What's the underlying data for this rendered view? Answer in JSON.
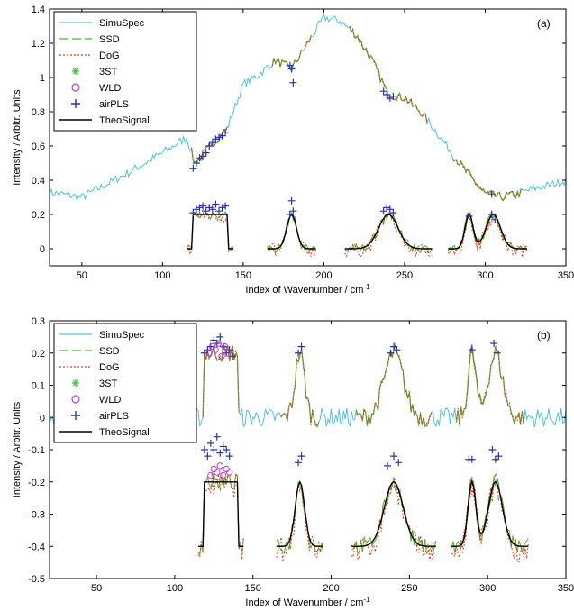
{
  "chart_data": [
    {
      "type": "line",
      "panel_label": "(a)",
      "xlabel": "Index of Wavenumber / cm",
      "xlabel_sup": "-1",
      "ylabel": "Intensity / Arbitr. Units",
      "xlim": [
        30,
        350
      ],
      "ylim": [
        -0.1,
        1.4
      ],
      "xticks": [
        50,
        100,
        150,
        200,
        250,
        300,
        350
      ],
      "yticks": [
        0,
        0.2,
        0.4,
        0.6,
        0.8,
        1,
        1.2,
        1.4
      ],
      "ytick_labels": [
        "0",
        "0.2",
        "0.4",
        "0.6",
        "0.8",
        "1",
        "1.2",
        "1.4"
      ],
      "legend_position": "top-left",
      "legend": [
        "SimuSpec",
        "SSD",
        "DoG",
        "3ST",
        "WLD",
        "airPLS",
        "TheoSignal"
      ],
      "colors": {
        "SimuSpec": "#4fc3d9",
        "SSD": "#55b030",
        "DoG": "#e0401e",
        "3ST": "#3cc23c",
        "WLD": "#c040c0",
        "airPLS": "#2a35a8",
        "TheoSignal": "#000000"
      },
      "series": [
        {
          "name": "SimuSpec",
          "x": [
            30,
            50,
            80,
            100,
            115,
            120,
            125,
            130,
            140,
            150,
            160,
            170,
            180,
            190,
            200,
            210,
            220,
            230,
            240,
            250,
            260,
            270,
            280,
            290,
            300,
            310,
            320,
            330,
            340,
            350
          ],
          "y": [
            0.33,
            0.3,
            0.45,
            0.56,
            0.65,
            0.5,
            0.55,
            0.6,
            0.7,
            0.96,
            1.02,
            1.1,
            1.05,
            1.2,
            1.35,
            1.33,
            1.25,
            1.1,
            0.9,
            0.88,
            0.8,
            0.68,
            0.55,
            0.43,
            0.32,
            0.3,
            0.32,
            0.35,
            0.37,
            0.4
          ]
        },
        {
          "name": "TheoSignal",
          "peaks": [
            {
              "type": "flat",
              "x0": 119,
              "x1": 140,
              "height": 0.2
            },
            {
              "type": "gauss",
              "center": 180,
              "height": 0.2,
              "sigma": 3
            },
            {
              "type": "gauss",
              "center": 240,
              "height": 0.2,
              "sigma": 6
            },
            {
              "type": "gauss",
              "center": 290,
              "height": 0.2,
              "sigma": 2.5
            },
            {
              "type": "gauss",
              "center": 305,
              "height": 0.2,
              "sigma": 4.5
            }
          ]
        },
        {
          "name": "airPLS",
          "x": [
            119,
            121,
            123,
            125,
            127,
            129,
            131,
            133,
            135,
            137,
            139,
            179,
            180,
            181,
            237,
            239,
            241,
            243,
            304,
            119,
            121,
            123,
            125,
            127,
            129,
            131,
            133,
            135,
            137,
            139,
            179,
            180,
            181,
            237,
            239,
            241,
            243,
            290,
            304,
            306
          ],
          "y": [
            0.47,
            0.5,
            0.53,
            0.54,
            0.56,
            0.6,
            0.62,
            0.64,
            0.65,
            0.66,
            0.68,
            1.07,
            1.05,
            0.97,
            0.92,
            0.9,
            0.88,
            0.89,
            0.32,
            0.21,
            0.23,
            0.24,
            0.25,
            0.22,
            0.24,
            0.23,
            0.26,
            0.22,
            0.24,
            0.25,
            0.2,
            0.28,
            0.22,
            0.22,
            0.24,
            0.23,
            0.21,
            0.19,
            0.2,
            0.17
          ]
        }
      ]
    },
    {
      "type": "line",
      "panel_label": "(b)",
      "xlabel": "Index of Wavenumber / cm",
      "xlabel_sup": "-1",
      "ylabel": "Intensity / Arbitr. Units",
      "xlim": [
        20,
        350
      ],
      "ylim": [
        -0.5,
        0.3
      ],
      "xticks": [
        50,
        100,
        150,
        200,
        250,
        300,
        350
      ],
      "yticks": [
        -0.5,
        -0.4,
        -0.3,
        -0.2,
        -0.1,
        0,
        0.1,
        0.2,
        0.3
      ],
      "ytick_labels": [
        "-0.5",
        "-0.4",
        "-0.3",
        "-0.2",
        "-0.1",
        "0",
        "0.1",
        "0.2",
        "0.3"
      ],
      "legend_position": "top-left",
      "legend": [
        "SimuSpec",
        "SSD",
        "DoG",
        "3ST",
        "WLD",
        "airPLS",
        "TheoSignal"
      ],
      "colors": {
        "SimuSpec": "#4fc3d9",
        "SSD": "#55b030",
        "DoG": "#e0401e",
        "3ST": "#3cc23c",
        "WLD": "#c040c0",
        "airPLS": "#2a35a8",
        "TheoSignal": "#000000"
      },
      "series": [
        {
          "name": "SimuSpec",
          "baseline": 0,
          "noise": 0.03,
          "peaks": [
            {
              "type": "flat",
              "x0": 119,
              "x1": 140,
              "height": 0.2
            },
            {
              "type": "gauss",
              "center": 180,
              "height": 0.2,
              "sigma": 3
            },
            {
              "type": "gauss",
              "center": 240,
              "height": 0.2,
              "sigma": 6
            },
            {
              "type": "gauss",
              "center": 290,
              "height": 0.2,
              "sigma": 2.5
            },
            {
              "type": "gauss",
              "center": 305,
              "height": 0.2,
              "sigma": 4.5
            }
          ]
        },
        {
          "name": "TheoSignal",
          "baseline": -0.4,
          "peaks": [
            {
              "type": "flat",
              "x0": 119,
              "x1": 140,
              "height": 0.2
            },
            {
              "type": "gauss",
              "center": 180,
              "height": 0.2,
              "sigma": 3
            },
            {
              "type": "gauss",
              "center": 240,
              "height": 0.2,
              "sigma": 6
            },
            {
              "type": "gauss",
              "center": 290,
              "height": 0.2,
              "sigma": 2.5
            },
            {
              "type": "gauss",
              "center": 305,
              "height": 0.2,
              "sigma": 4.5
            }
          ]
        },
        {
          "name": "airPLS",
          "x": [
            119,
            121,
            123,
            125,
            127,
            129,
            131,
            133,
            135,
            137,
            179,
            181,
            238,
            240,
            242,
            290,
            304,
            306,
            119,
            121,
            123,
            125,
            127,
            129,
            131,
            133,
            135,
            179,
            181,
            236,
            240,
            243,
            288,
            290,
            303,
            305,
            307
          ],
          "y": [
            0.2,
            0.21,
            0.22,
            0.24,
            0.23,
            0.25,
            0.22,
            0.2,
            0.21,
            0.19,
            0.2,
            0.22,
            0.2,
            0.22,
            0.21,
            0.21,
            0.23,
            0.2,
            -0.1,
            -0.12,
            -0.08,
            -0.1,
            -0.06,
            -0.11,
            -0.09,
            -0.1,
            -0.12,
            -0.14,
            -0.12,
            -0.15,
            -0.12,
            -0.14,
            -0.13,
            -0.13,
            -0.1,
            -0.13,
            -0.12
          ]
        },
        {
          "name": "WLD",
          "x": [
            122,
            124,
            126,
            128,
            130,
            132,
            134,
            123,
            125,
            127,
            129,
            131,
            133,
            135
          ],
          "y": [
            0.2,
            0.22,
            0.21,
            0.23,
            0.19,
            0.22,
            0.2,
            -0.18,
            -0.16,
            -0.17,
            -0.15,
            -0.18,
            -0.16,
            -0.17
          ]
        }
      ]
    }
  ]
}
